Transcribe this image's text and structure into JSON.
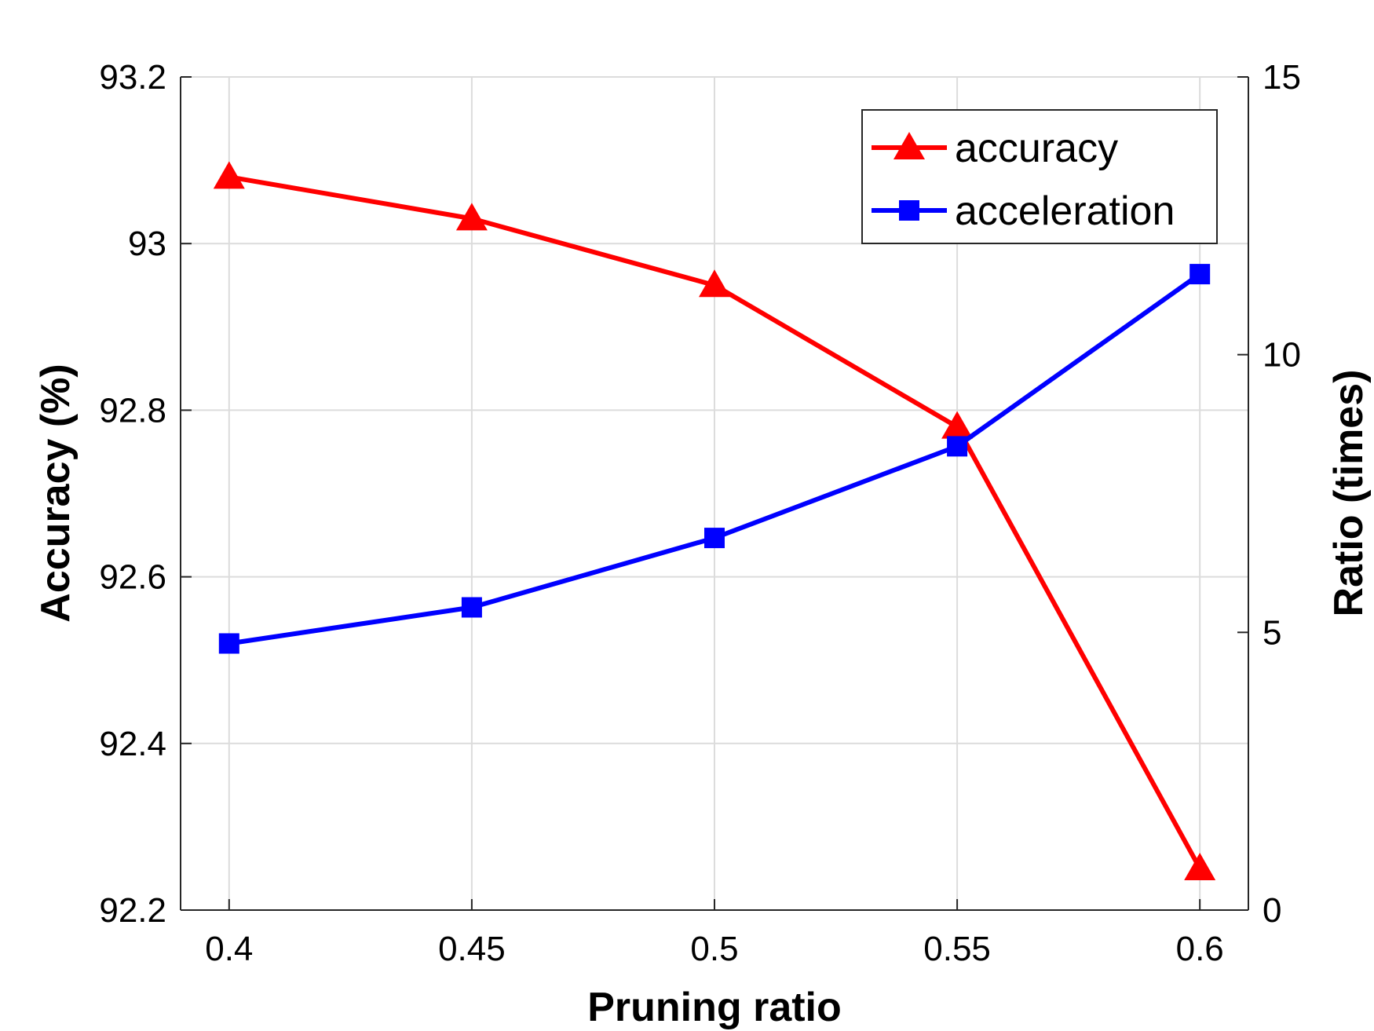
{
  "chart_data": {
    "type": "line",
    "x": [
      0.4,
      0.45,
      0.5,
      0.55,
      0.6
    ],
    "x_tick_labels": [
      "0.4",
      "0.45",
      "0.5",
      "0.55",
      "0.6"
    ],
    "xlabel": "Pruning ratio",
    "ylabel_left": "Accuracy (%)",
    "ylabel_right": "Ratio (times)",
    "xlim": [
      0.39,
      0.61
    ],
    "ylim_left": [
      92.2,
      93.2
    ],
    "ylim_right": [
      0,
      15
    ],
    "y_left_ticks": [
      92.2,
      92.4,
      92.6,
      92.8,
      93.0,
      93.2
    ],
    "y_left_tick_labels": [
      "92.2",
      "92.4",
      "92.6",
      "92.8",
      "93",
      "93.2"
    ],
    "y_right_ticks": [
      0,
      5,
      10,
      15
    ],
    "y_right_tick_labels": [
      "0",
      "5",
      "10",
      "15"
    ],
    "grid": true,
    "legend_position": "top-right",
    "series": [
      {
        "name": "accuracy",
        "axis": "left",
        "color": "#ff0000",
        "marker": "triangle",
        "values": [
          93.08,
          93.03,
          92.95,
          92.78,
          92.25
        ]
      },
      {
        "name": "acceleration",
        "axis": "right",
        "color": "#0000ff",
        "marker": "square",
        "values": [
          4.8,
          5.45,
          6.7,
          8.35,
          11.45
        ]
      }
    ]
  }
}
